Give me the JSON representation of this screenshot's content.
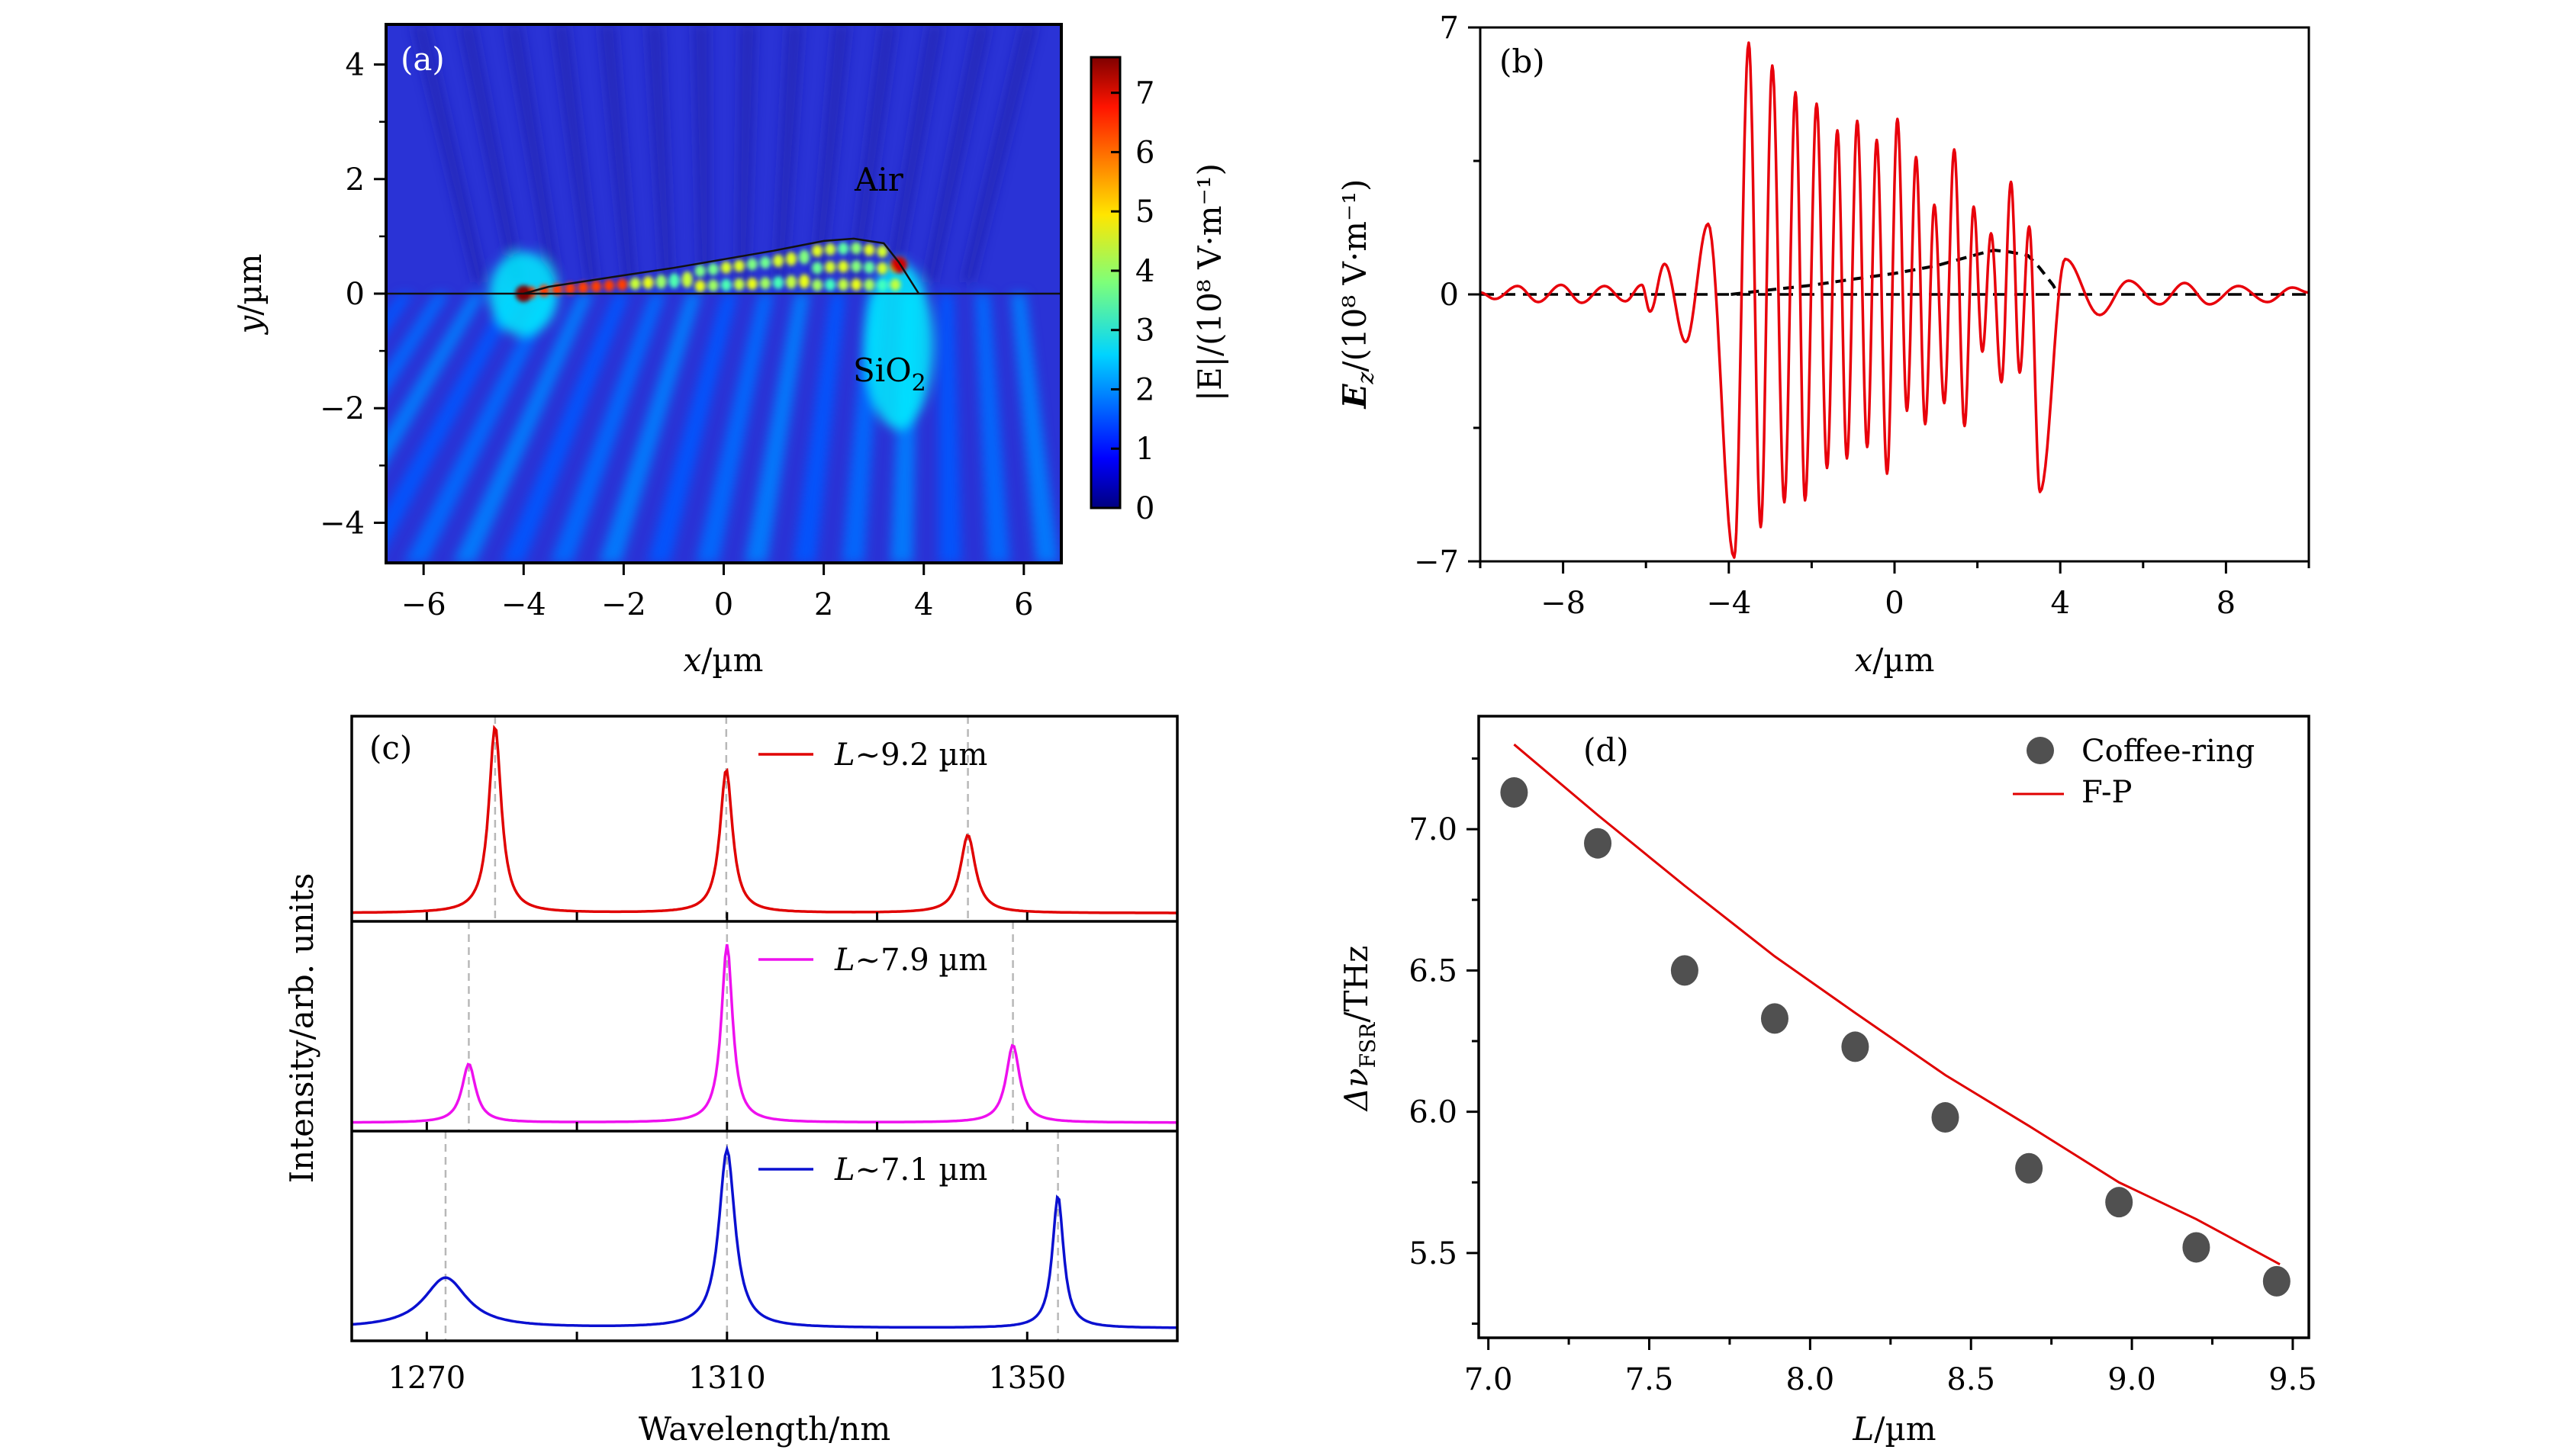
{
  "chart_data": [
    {
      "id": "a",
      "type": "heatmap",
      "panel_tag": "(a)",
      "title": "",
      "xlabel_var": "x",
      "xlabel_unit": "/µm",
      "ylabel_var": "y",
      "ylabel_unit": "/µm",
      "xlim": [
        -6.75,
        6.75
      ],
      "ylim": [
        -4.7,
        4.7
      ],
      "xticks": [
        -6,
        -4,
        -2,
        0,
        2,
        4,
        6
      ],
      "yticks": [
        -4,
        -2,
        0,
        2,
        4
      ],
      "colormap": "jet",
      "colorbar": {
        "label": "|E|/(10⁸ V·m⁻¹)",
        "range": [
          0,
          7.6
        ],
        "ticks": [
          0,
          1,
          2,
          3,
          4,
          5,
          6,
          7
        ]
      },
      "region_labels": [
        {
          "text": "Air",
          "x": 3.0,
          "y": 2.0
        },
        {
          "text": "SiO",
          "sub": "2",
          "x": 3.0,
          "y": -1.5
        }
      ],
      "interface_y": 0,
      "cavity_outline": [
        [
          -4.0,
          0.0
        ],
        [
          -3.5,
          0.12
        ],
        [
          -2.0,
          0.32
        ],
        [
          -1.0,
          0.45
        ],
        [
          0.0,
          0.6
        ],
        [
          1.0,
          0.75
        ],
        [
          2.0,
          0.92
        ],
        [
          2.6,
          0.96
        ],
        [
          3.2,
          0.88
        ],
        [
          3.5,
          0.55
        ],
        [
          3.9,
          0.0
        ]
      ],
      "hotspots": [
        [
          -4.0,
          0.0,
          7.6
        ],
        [
          3.5,
          0.5,
          7.0
        ]
      ]
    },
    {
      "id": "b",
      "type": "line",
      "panel_tag": "(b)",
      "xlabel_var": "x",
      "xlabel_unit": "/µm",
      "ylabel_var": "E",
      "ylabel_sub": "z",
      "ylabel_unit": "/(10⁸ V·m⁻¹)",
      "xlim": [
        -10,
        10
      ],
      "ylim": [
        -7,
        7
      ],
      "xticks": [
        -8,
        -4,
        0,
        4,
        8
      ],
      "yticks": [
        -7,
        0,
        7
      ],
      "series": [
        {
          "name": "Ez",
          "color": "#e8000b",
          "extrema": [
            [
              -10.0,
              0.05
            ],
            [
              -9.65,
              -0.12
            ],
            [
              -9.1,
              0.22
            ],
            [
              -8.6,
              -0.2
            ],
            [
              -8.05,
              0.25
            ],
            [
              -7.55,
              -0.22
            ],
            [
              -7.0,
              0.22
            ],
            [
              -6.5,
              -0.18
            ],
            [
              -6.1,
              0.25
            ],
            [
              -5.9,
              -0.45
            ],
            [
              -5.55,
              0.8
            ],
            [
              -5.04,
              -1.25
            ],
            [
              -4.5,
              1.85
            ],
            [
              -3.87,
              -6.9
            ],
            [
              -3.52,
              6.6
            ],
            [
              -3.23,
              -6.1
            ],
            [
              -2.95,
              6.0
            ],
            [
              -2.66,
              -5.45
            ],
            [
              -2.39,
              5.3
            ],
            [
              -2.16,
              -5.4
            ],
            [
              -1.88,
              5.0
            ],
            [
              -1.63,
              -4.55
            ],
            [
              -1.38,
              4.3
            ],
            [
              -1.15,
              -4.3
            ],
            [
              -0.9,
              4.55
            ],
            [
              -0.66,
              -4.0
            ],
            [
              -0.43,
              4.05
            ],
            [
              -0.18,
              -4.7
            ],
            [
              0.07,
              4.6
            ],
            [
              0.3,
              -3.05
            ],
            [
              0.52,
              3.6
            ],
            [
              0.74,
              -3.4
            ],
            [
              0.96,
              2.35
            ],
            [
              1.2,
              -2.85
            ],
            [
              1.44,
              3.8
            ],
            [
              1.69,
              -3.45
            ],
            [
              1.91,
              2.3
            ],
            [
              2.12,
              -1.5
            ],
            [
              2.33,
              1.6
            ],
            [
              2.58,
              -2.3
            ],
            [
              2.81,
              2.95
            ],
            [
              3.02,
              -2.05
            ],
            [
              3.25,
              1.78
            ],
            [
              3.51,
              -5.18
            ],
            [
              4.12,
              0.93
            ],
            [
              4.95,
              -0.54
            ],
            [
              5.65,
              0.36
            ],
            [
              6.4,
              -0.26
            ],
            [
              7.0,
              0.3
            ],
            [
              7.6,
              -0.26
            ],
            [
              8.3,
              0.22
            ],
            [
              9.0,
              -0.2
            ],
            [
              9.6,
              0.18
            ],
            [
              10.0,
              0.05
            ]
          ]
        },
        {
          "name": "surface profile",
          "color": "#000000",
          "style": "dashed",
          "points": [
            [
              -3.95,
              0.0
            ],
            [
              -3.0,
              0.12
            ],
            [
              -2.0,
              0.24
            ],
            [
              -1.0,
              0.4
            ],
            [
              0.0,
              0.55
            ],
            [
              1.0,
              0.75
            ],
            [
              2.0,
              1.05
            ],
            [
              2.4,
              1.16
            ],
            [
              2.8,
              1.11
            ],
            [
              3.22,
              1.02
            ],
            [
              3.5,
              0.7
            ],
            [
              3.83,
              0.24
            ],
            [
              3.95,
              0.0
            ]
          ]
        },
        {
          "name": "zero line",
          "color": "#000000",
          "style": "dashed",
          "points": [
            [
              -10,
              0
            ],
            [
              10,
              0
            ]
          ]
        }
      ]
    },
    {
      "id": "c",
      "type": "line",
      "panel_tag": "(c)",
      "xlabel": "Wavelength/nm",
      "ylabel": "Intensity/arb. units",
      "xlim": [
        1260,
        1370
      ],
      "xticks": [
        1270,
        1310,
        1350
      ],
      "xminor": [
        1290,
        1330
      ],
      "subplots": [
        {
          "legend_var": "L",
          "legend_text": "~9.2 µm",
          "color": "#e00000",
          "baseline": 0.04,
          "peaks": [
            {
              "center": 1279.1,
              "height": 0.95,
              "fwhm": 2.0
            },
            {
              "center": 1309.9,
              "height": 0.74,
              "fwhm": 2.0
            },
            {
              "center": 1342.1,
              "height": 0.42,
              "fwhm": 2.4
            }
          ]
        },
        {
          "legend_var": "L",
          "legend_text": "~7.9 µm",
          "color": "#ee10ee",
          "baseline": 0.04,
          "peaks": [
            {
              "center": 1275.6,
              "height": 0.32,
              "fwhm": 2.2
            },
            {
              "center": 1310.0,
              "height": 0.89,
              "fwhm": 1.8
            },
            {
              "center": 1348.1,
              "height": 0.41,
              "fwhm": 2.2
            }
          ]
        },
        {
          "legend_var": "L",
          "legend_text": "~7.1 µm",
          "color": "#0a10d0",
          "baseline": 0.06,
          "peaks": [
            {
              "center": 1272.5,
              "height": 0.3,
              "fwhm": 7.0
            },
            {
              "center": 1310.0,
              "height": 0.91,
              "fwhm": 2.6
            },
            {
              "center": 1354.1,
              "height": 0.69,
              "fwhm": 1.8
            }
          ]
        }
      ]
    },
    {
      "id": "d",
      "type": "scatter",
      "panel_tag": "(d)",
      "xlabel_var": "L",
      "xlabel_unit": "/µm",
      "ylabel": "Δν_FSR/THz",
      "ylabel_main": "Δν",
      "ylabel_sub": "FSR",
      "ylabel_unit": "/THz",
      "xlim": [
        6.97,
        9.55
      ],
      "ylim": [
        5.2,
        7.4
      ],
      "xticks": [
        7.0,
        7.5,
        8.0,
        8.5,
        9.0,
        9.5
      ],
      "xtick_labels": [
        "7.0",
        "7.5",
        "8.0",
        "8.5",
        "9.0",
        "9.5"
      ],
      "yticks": [
        5.5,
        6.0,
        6.5,
        7.0
      ],
      "ytick_labels": [
        "5.5",
        "6.0",
        "6.5",
        "7.0"
      ],
      "legend_position": "top-right",
      "series": [
        {
          "name": "Coffee-ring",
          "type": "scatter",
          "color": "#505050",
          "x": [
            7.08,
            7.34,
            7.61,
            7.89,
            8.14,
            8.42,
            8.68,
            8.96,
            9.2,
            9.45
          ],
          "y": [
            7.13,
            6.95,
            6.5,
            6.33,
            6.23,
            5.98,
            5.8,
            5.68,
            5.52,
            5.4
          ]
        },
        {
          "name": "F-P",
          "type": "line",
          "color": "#e00000",
          "x": [
            7.08,
            7.34,
            7.61,
            7.89,
            8.14,
            8.42,
            8.68,
            8.96,
            9.2,
            9.46
          ],
          "y": [
            7.3,
            7.05,
            6.8,
            6.55,
            6.35,
            6.13,
            5.95,
            5.75,
            5.62,
            5.46
          ]
        }
      ]
    }
  ]
}
